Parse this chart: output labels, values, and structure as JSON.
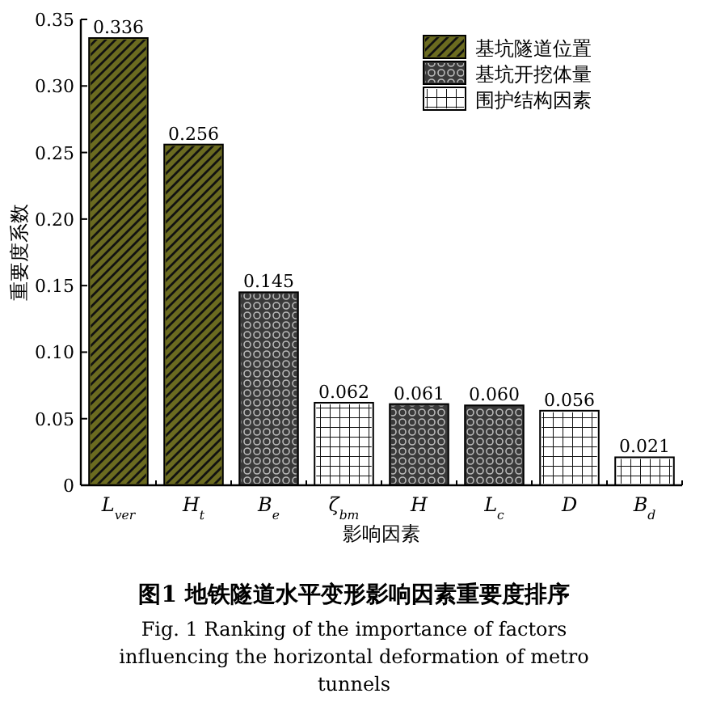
{
  "chart_data": {
    "type": "bar",
    "title": "图1  地铁隧道水平变形影响因素重要度排序",
    "subtitle": "Fig. 1  Ranking of the importance of factors influencing the horizontal deformation of metro tunnels",
    "xlabel": "影响因素",
    "ylabel": "重要度系数",
    "categories": [
      "L$_{ver}$",
      "H$_{t}$",
      "B$_{e}$",
      "ζ$_{bm}$",
      "H",
      "L$_{c}$",
      "D",
      "B$_{d}$"
    ],
    "series": [
      {
        "name": "基坑隧道位置",
        "color": "#6b6b20",
        "values": [
          0.336,
          0.256,
          null,
          null,
          null,
          null,
          null,
          null
        ],
        "value_labels": [
          "0.336",
          "0.256",
          null,
          null,
          null,
          null,
          null,
          null
        ]
      },
      {
        "name": "基坑开挖体量",
        "color": "#3a3a3a",
        "values": [
          null,
          null,
          0.145,
          null,
          0.061,
          0.06,
          null,
          null
        ],
        "value_labels": [
          null,
          null,
          "0.145",
          null,
          "0.061",
          "0.060",
          null,
          null
        ]
      },
      {
        "name": "围护结构因素",
        "color": "#ffffff",
        "values": [
          null,
          null,
          null,
          0.062,
          null,
          null,
          0.056,
          0.021
        ],
        "value_labels": [
          null,
          null,
          null,
          "0.062",
          null,
          null,
          "0.056",
          "0.021"
        ]
      }
    ],
    "ylim": [
      0,
      0.35
    ],
    "yticks": [
      0,
      0.05,
      {
        "value": 0.1,
        "label": "0.10"
      },
      0.15,
      {
        "value": 0.2,
        "label": "0.20"
      },
      0.25,
      {
        "value": 0.3,
        "label": "0.30"
      },
      0.35
    ],
    "legend": "top right"
  }
}
